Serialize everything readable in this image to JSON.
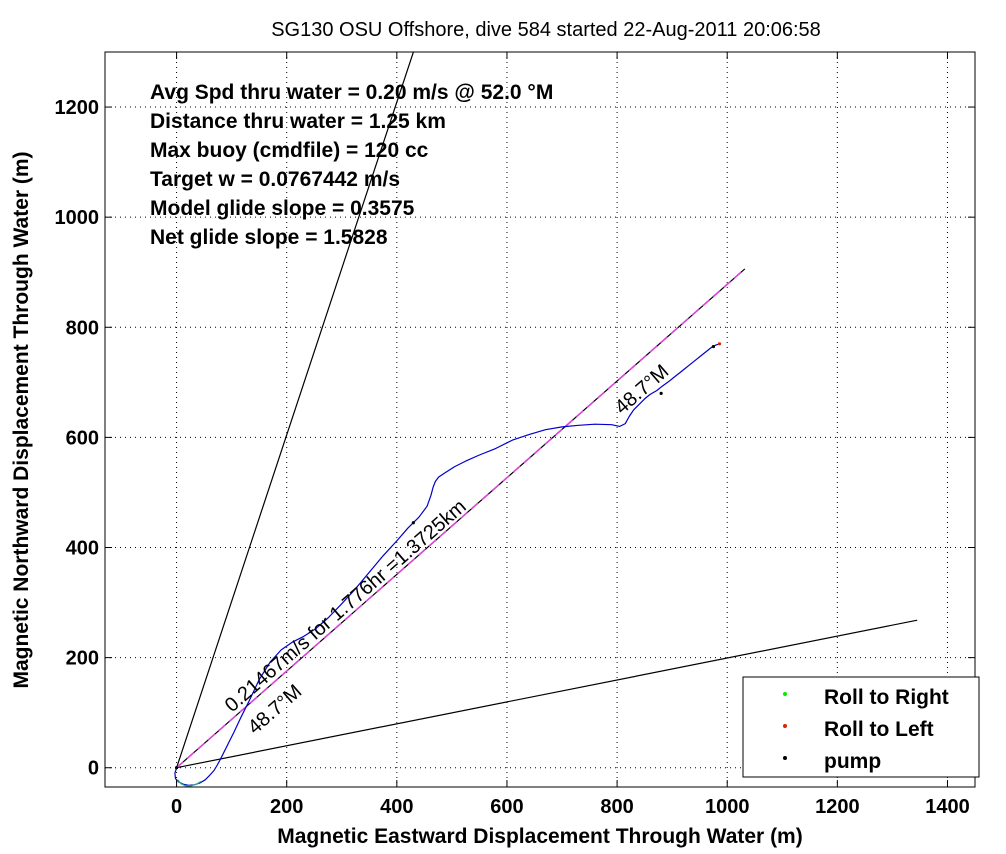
{
  "title": "SG130 OSU Offshore, dive 584 started 22-Aug-2011 20:06:58",
  "stats": [
    "Avg Spd thru water  =  0.20 m/s @  52.0 °M",
    "Distance thru water =  1.25 km",
    "Max buoy (cmdfile)  = 120 cc",
    "Target w                 = 0.0767442 m/s",
    "Model glide slope    = 0.3575",
    "Net glide slope        = 1.5828"
  ],
  "annotations": {
    "main_label": "0.21467m/s for 1.776hr =1.3725km",
    "heading_label_1": "48.7°M",
    "heading_label_2": "48.7°M"
  },
  "chart_data": {
    "type": "line",
    "title": "SG130 OSU Offshore, dive 584 started 22-Aug-2011 20:06:58",
    "xlabel": "Magnetic Eastward Displacement Through Water (m)",
    "ylabel": "Magnetic Northward Displacement Through Water (m)",
    "xlim": [
      -130,
      1450
    ],
    "ylim": [
      -35,
      1300
    ],
    "xticks": [
      0,
      200,
      400,
      600,
      800,
      1000,
      1200,
      1400
    ],
    "yticks": [
      0,
      200,
      400,
      600,
      800,
      1000,
      1200
    ],
    "grid": true,
    "legend_position": "bottom-right",
    "legend": [
      {
        "label": "Roll to Right",
        "color": "#00ee00"
      },
      {
        "label": "Roll to Left",
        "color": "#dd2200"
      },
      {
        "label": "pump",
        "color": "#000000"
      }
    ],
    "series": [
      {
        "type": "line",
        "color": "#000000",
        "dash": "solid",
        "x": [
          0,
          430
        ],
        "y": [
          0,
          1300
        ]
      },
      {
        "type": "line",
        "color": "#000000",
        "dash": "solid",
        "x": [
          0,
          1345
        ],
        "y": [
          0,
          268
        ]
      },
      {
        "type": "line",
        "color": "#000000",
        "dash": "solid",
        "x": [
          0,
          1032
        ],
        "y": [
          0,
          906
        ]
      },
      {
        "type": "line",
        "color": "#dd44dd",
        "dash": "dashed",
        "x": [
          0,
          1032
        ],
        "y": [
          0,
          906
        ]
      },
      {
        "type": "line",
        "color": "#0000cc",
        "dash": "solid",
        "x": [
          0,
          -3,
          -2,
          4,
          12,
          22,
          32,
          42,
          52,
          60,
          68,
          74,
          80,
          86,
          94,
          104,
          116,
          132,
          150,
          170,
          190,
          210,
          230,
          252,
          275,
          300,
          325,
          350,
          375,
          400,
          420,
          440,
          455,
          462,
          466,
          470,
          476,
          488,
          505,
          525,
          550,
          580,
          610,
          640,
          670,
          700,
          730,
          760,
          790,
          805,
          815,
          822,
          830,
          840,
          850,
          860,
          872,
          882,
          892,
          902,
          912,
          922,
          932,
          942,
          952,
          962,
          972,
          980,
          986
        ],
        "y": [
          0,
          -10,
          -20,
          -26,
          -30,
          -32,
          -31,
          -28,
          -22,
          -14,
          -5,
          5,
          16,
          28,
          44,
          64,
          90,
          122,
          160,
          192,
          214,
          228,
          238,
          252,
          272,
          298,
          325,
          355,
          385,
          412,
          435,
          455,
          475,
          495,
          510,
          520,
          528,
          536,
          547,
          557,
          568,
          580,
          595,
          605,
          614,
          619,
          622,
          624,
          623,
          620,
          625,
          638,
          650,
          660,
          670,
          678,
          685,
          693,
          700,
          708,
          716,
          724,
          732,
          740,
          748,
          756,
          764,
          768,
          770
        ]
      },
      {
        "type": "line",
        "color": "#22aa88",
        "dash": "solid",
        "x": [
          2,
          8,
          16,
          26,
          36,
          44
        ],
        "y": [
          -22,
          -29,
          -33,
          -33,
          -30,
          -25
        ]
      },
      {
        "type": "scatter",
        "color": "#000000",
        "x": [
          0,
          430,
          880,
          975
        ],
        "y": [
          0,
          445,
          680,
          765
        ]
      },
      {
        "type": "scatter",
        "color": "#dd2200",
        "x": [
          986
        ],
        "y": [
          770
        ]
      }
    ]
  }
}
